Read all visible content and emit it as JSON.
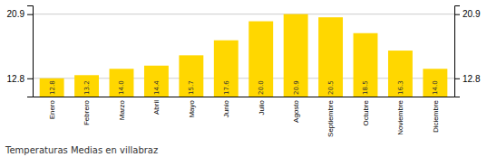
{
  "chart_data": {
    "type": "bar",
    "title": "Temperaturas Medias en villabraz",
    "categories": [
      "Enero",
      "Febrero",
      "Marzo",
      "Abril",
      "Mayo",
      "Junio",
      "Julio",
      "Agosto",
      "Septiembre",
      "Octubre",
      "Noviembre",
      "Diciembre"
    ],
    "values": [
      12.8,
      13.2,
      14.0,
      14.4,
      15.7,
      17.6,
      20.0,
      20.9,
      20.5,
      18.5,
      16.3,
      14.0
    ],
    "value_labels": [
      "12.8",
      "13.2",
      "14.0",
      "14.4",
      "15.7",
      "17.6",
      "20.0",
      "20.9",
      "20.5",
      "18.5",
      "16.3",
      "14.0"
    ],
    "color": "#FFD700",
    "ylim": [
      10.5,
      22.0
    ],
    "yticks": [
      12.8,
      20.9
    ],
    "y2lim": [
      10.5,
      22.0
    ],
    "y2ticks": [
      12.8,
      20.9
    ],
    "grid": true,
    "data_labels": true
  }
}
